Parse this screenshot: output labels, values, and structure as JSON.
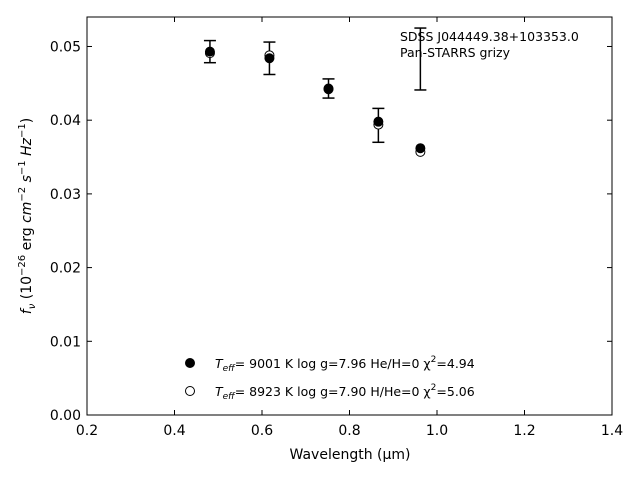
{
  "chart_data": {
    "type": "scatter",
    "xlabel": "Wavelength (μm)",
    "xlim": [
      0.2,
      1.4
    ],
    "ylim": [
      0.0,
      0.054
    ],
    "x_ticks": [
      0.2,
      0.4,
      0.6,
      0.8,
      1.0,
      1.2,
      1.4
    ],
    "x_tick_labels": [
      "0.2",
      "0.4",
      "0.6",
      "0.8",
      "1.0",
      "1.2",
      "1.4"
    ],
    "y_ticks": [
      0.0,
      0.01,
      0.02,
      0.03,
      0.04,
      0.05
    ],
    "y_tick_labels": [
      "0.00",
      "0.01",
      "0.02",
      "0.03",
      "0.04",
      "0.05"
    ],
    "grid": false,
    "annotations": [
      "SDSS J044449.38+103353.0",
      "Pan-STARRS grizy"
    ],
    "observed": {
      "x": [
        0.481,
        0.617,
        0.752,
        0.866,
        0.962
      ],
      "y": [
        0.0493,
        0.0484,
        0.0443,
        0.0393,
        0.0483
      ],
      "yerr": [
        0.0015,
        0.0022,
        0.0013,
        0.0023,
        0.0042
      ]
    },
    "series": [
      {
        "marker": "filled-circle",
        "x": [
          0.481,
          0.617,
          0.752,
          0.866,
          0.962
        ],
        "y": [
          0.0493,
          0.0484,
          0.0443,
          0.0398,
          0.0362
        ],
        "legend": {
          "prefix": "T",
          "sub": "eff",
          "rest": "=  9001 K  log g=7.96  He/H=0  χ",
          "sup": "2",
          "tail": "=4.94"
        }
      },
      {
        "marker": "open-circle",
        "x": [
          0.481,
          0.617,
          0.752,
          0.866,
          0.962
        ],
        "y": [
          0.0491,
          0.0488,
          0.0442,
          0.0394,
          0.0357
        ],
        "legend": {
          "prefix": "T",
          "sub": "eff",
          "rest": "=  8923 K  log g=7.90  H/He=0  χ",
          "sup": "2",
          "tail": "=5.06"
        }
      }
    ]
  }
}
